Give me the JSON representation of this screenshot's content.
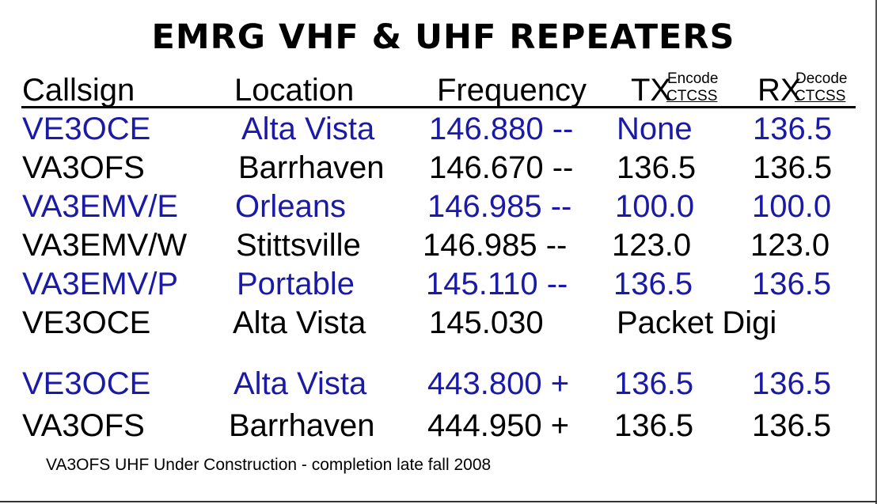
{
  "title": "EMRG VHF & UHF REPEATERS",
  "headers": {
    "callsign": "Callsign",
    "location": "Location",
    "frequency": "Frequency",
    "tx": "TX",
    "tx_sub_top": "Encode",
    "tx_sub_bottom": "CTCSS",
    "rx": "RX",
    "rx_sub_top": "Decode",
    "rx_sub_bottom": "CTCSS"
  },
  "rows": [
    {
      "callsign": "VE3OCE",
      "location": "Alta Vista",
      "frequency": "146.880 --",
      "tx": "None",
      "rx": "136.5",
      "color": "#1a1aa6"
    },
    {
      "callsign": "VA3OFS",
      "location": "Barrhaven",
      "frequency": "146.670 --",
      "tx": "136.5",
      "rx": "136.5",
      "color": "#000000"
    },
    {
      "callsign": "VA3EMV/E",
      "location": "Orleans",
      "frequency": "146.985 --",
      "tx": "100.0",
      "rx": "100.0",
      "color": "#1a1aa6"
    },
    {
      "callsign": "VA3EMV/W",
      "location": "Stittsville",
      "frequency": "146.985 --",
      "tx": "123.0",
      "rx": "123.0",
      "color": "#000000"
    },
    {
      "callsign": "VA3EMV/P",
      "location": "Portable",
      "frequency": "145.110 --",
      "tx": "136.5",
      "rx": "136.5",
      "color": "#1a1aa6"
    },
    {
      "callsign": "VE3OCE",
      "location": "Alta Vista",
      "frequency": "145.030",
      "tx": "Packet Digi",
      "rx": "",
      "color": "#000000"
    },
    {
      "callsign": "VE3OCE",
      "location": "Alta Vista",
      "frequency": "443.800 +",
      "tx": "136.5",
      "rx": "136.5",
      "color": "#1a1aa6"
    },
    {
      "callsign": "VA3OFS",
      "location": "Barrhaven",
      "frequency": "444.950 +",
      "tx": "136.5",
      "rx": "136.5",
      "color": "#000000"
    }
  ],
  "note": "VA3OFS UHF Under Construction - completion late fall 2008"
}
